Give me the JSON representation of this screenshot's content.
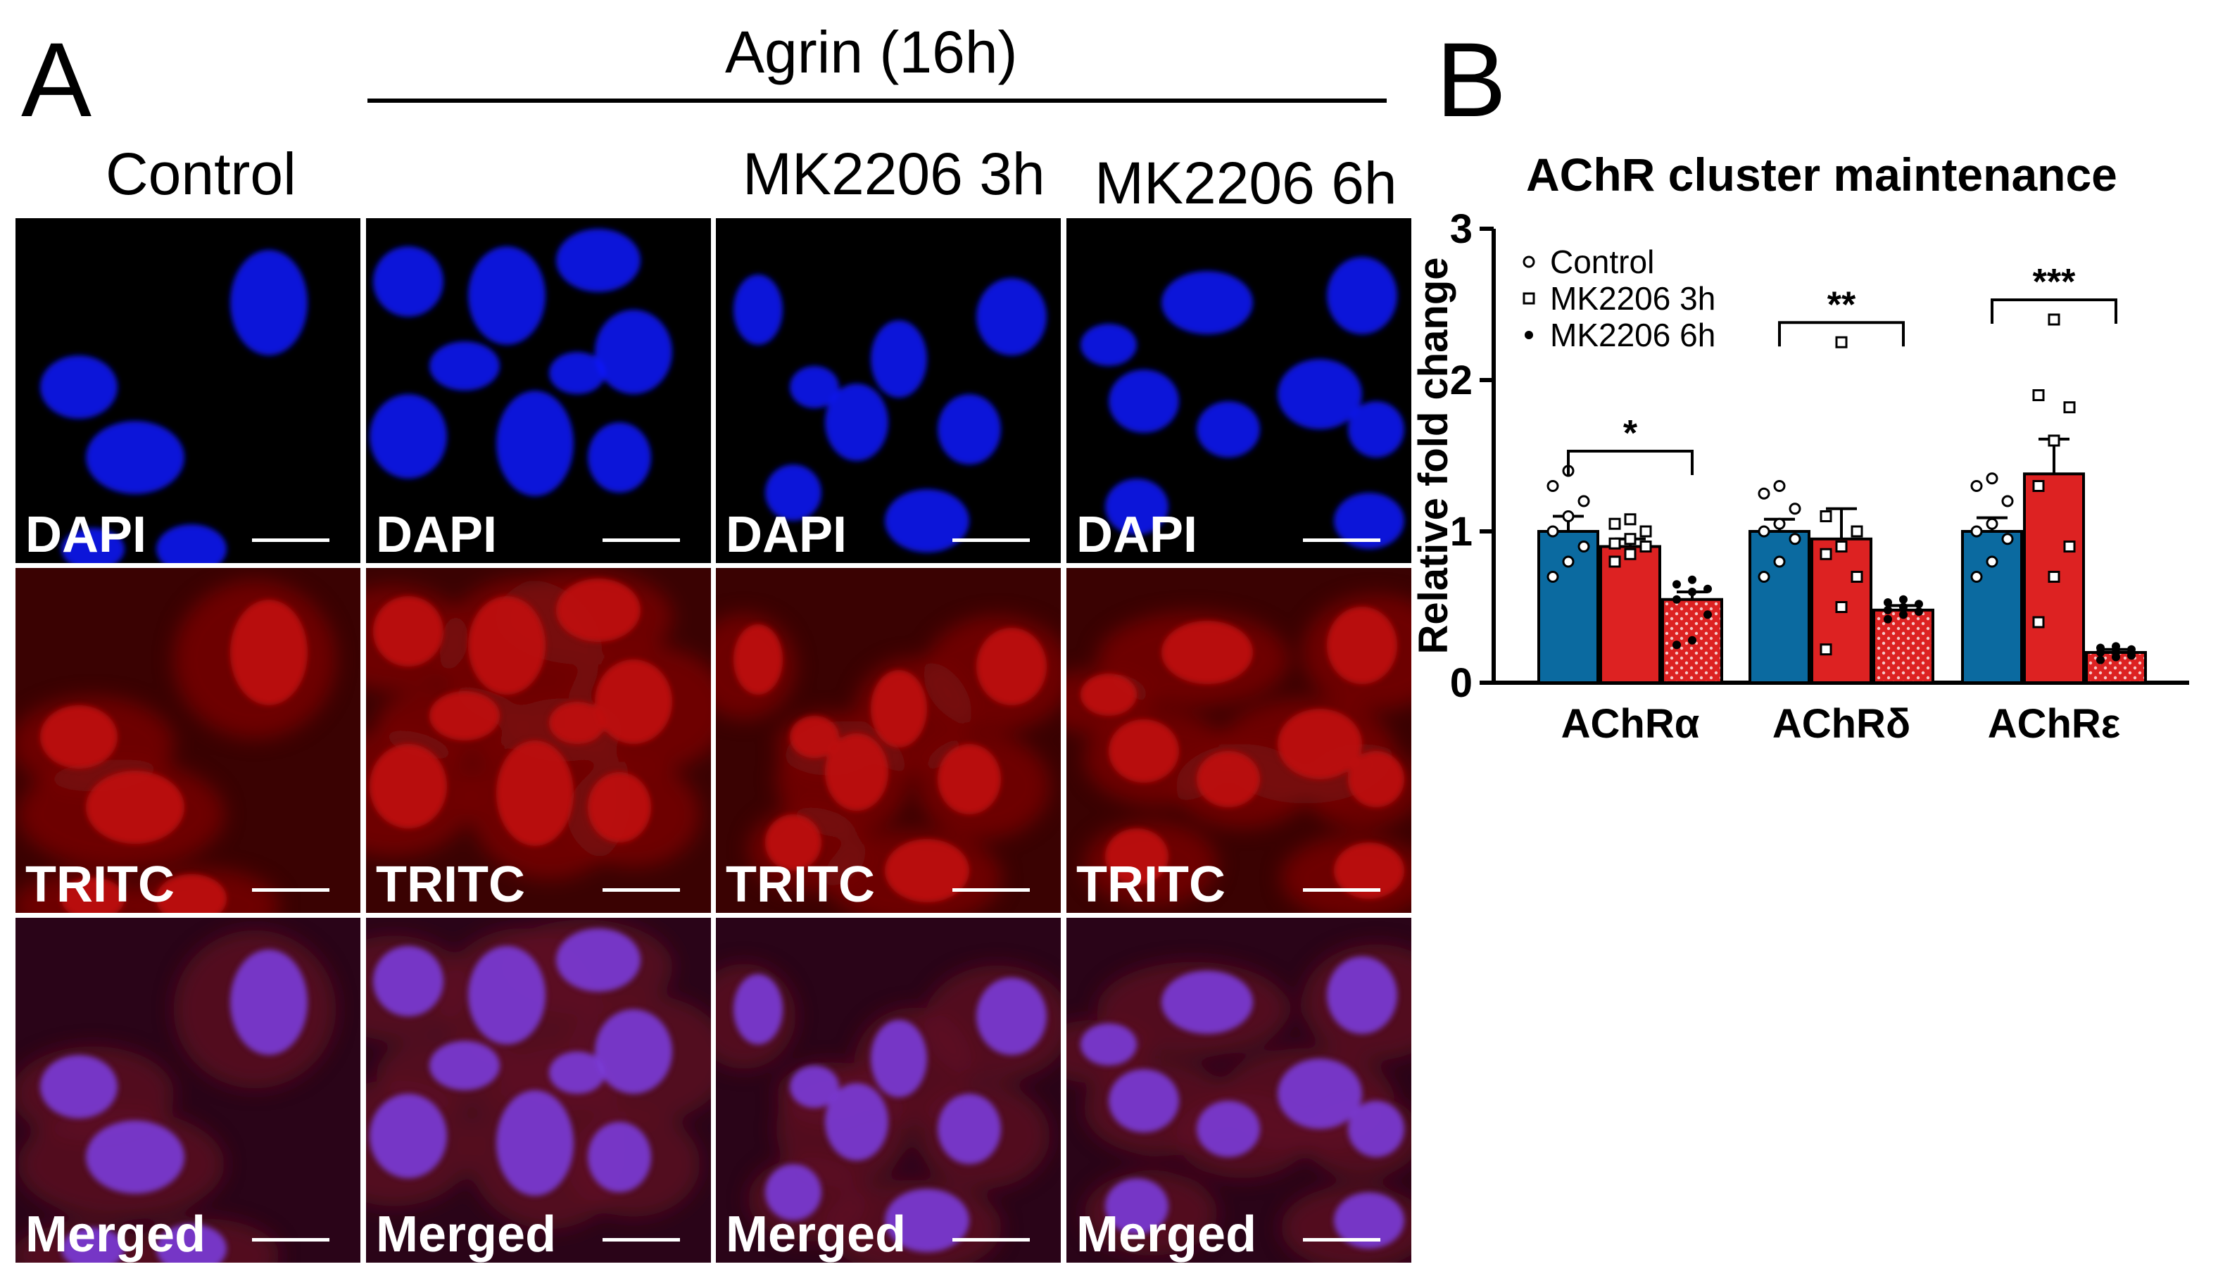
{
  "panel_a": {
    "letter": "A",
    "header": "Agrin (16h)",
    "column_labels": [
      "Control",
      "",
      "MK2206 3h",
      "MK2206 6h"
    ],
    "row_labels": [
      "DAPI",
      "TRITC",
      "Merged"
    ],
    "channel_colors": {
      "dapi": "#0a14ff",
      "tritc": "#e01010",
      "background": "#000000"
    }
  },
  "panel_b": {
    "letter": "B"
  },
  "chart_data": {
    "type": "bar",
    "title": "AChR cluster maintenance",
    "ylabel": "Relative fold change",
    "xlabel": "",
    "ylim": [
      0,
      3
    ],
    "yticks": [
      "0",
      "1",
      "2",
      "3"
    ],
    "categories": [
      "AChRα",
      "AChRδ",
      "AChRε"
    ],
    "legend_position": "top-left",
    "series": [
      {
        "name": "Control",
        "color": "#0b6aa0",
        "marker": "circle",
        "values": [
          1.0,
          1.0,
          1.0
        ],
        "errors": [
          0.1,
          0.08,
          0.09
        ],
        "points": [
          [
            0.7,
            0.8,
            0.9,
            1.0,
            1.1,
            1.2,
            1.3,
            1.4
          ],
          [
            0.7,
            0.8,
            0.95,
            1.0,
            1.05,
            1.15,
            1.25,
            1.3
          ],
          [
            0.7,
            0.8,
            0.95,
            1.0,
            1.05,
            1.2,
            1.3,
            1.35
          ]
        ]
      },
      {
        "name": "MK2206 3h",
        "color": "#dd2222",
        "marker": "square",
        "values": [
          0.9,
          0.95,
          1.38
        ],
        "errors": [
          0.05,
          0.2,
          0.23
        ],
        "points": [
          [
            0.8,
            0.85,
            0.9,
            0.92,
            0.95,
            1.0,
            1.05,
            1.08
          ],
          [
            0.22,
            0.5,
            0.7,
            0.85,
            0.9,
            1.0,
            1.1,
            2.25
          ],
          [
            0.4,
            0.7,
            0.9,
            1.3,
            1.6,
            1.82,
            1.9,
            2.4
          ]
        ]
      },
      {
        "name": "MK2206 6h",
        "color": "#dd2222",
        "marker": "dot",
        "values": [
          0.55,
          0.48,
          0.2
        ],
        "errors": [
          0.05,
          0.03,
          0.02
        ],
        "points": [
          [
            0.25,
            0.28,
            0.45,
            0.55,
            0.6,
            0.62,
            0.65,
            0.68
          ],
          [
            0.42,
            0.45,
            0.47,
            0.48,
            0.5,
            0.52,
            0.53,
            0.55
          ],
          [
            0.15,
            0.17,
            0.18,
            0.2,
            0.2,
            0.22,
            0.23,
            0.24
          ]
        ]
      }
    ],
    "significance": [
      "*",
      "**",
      "***"
    ]
  }
}
